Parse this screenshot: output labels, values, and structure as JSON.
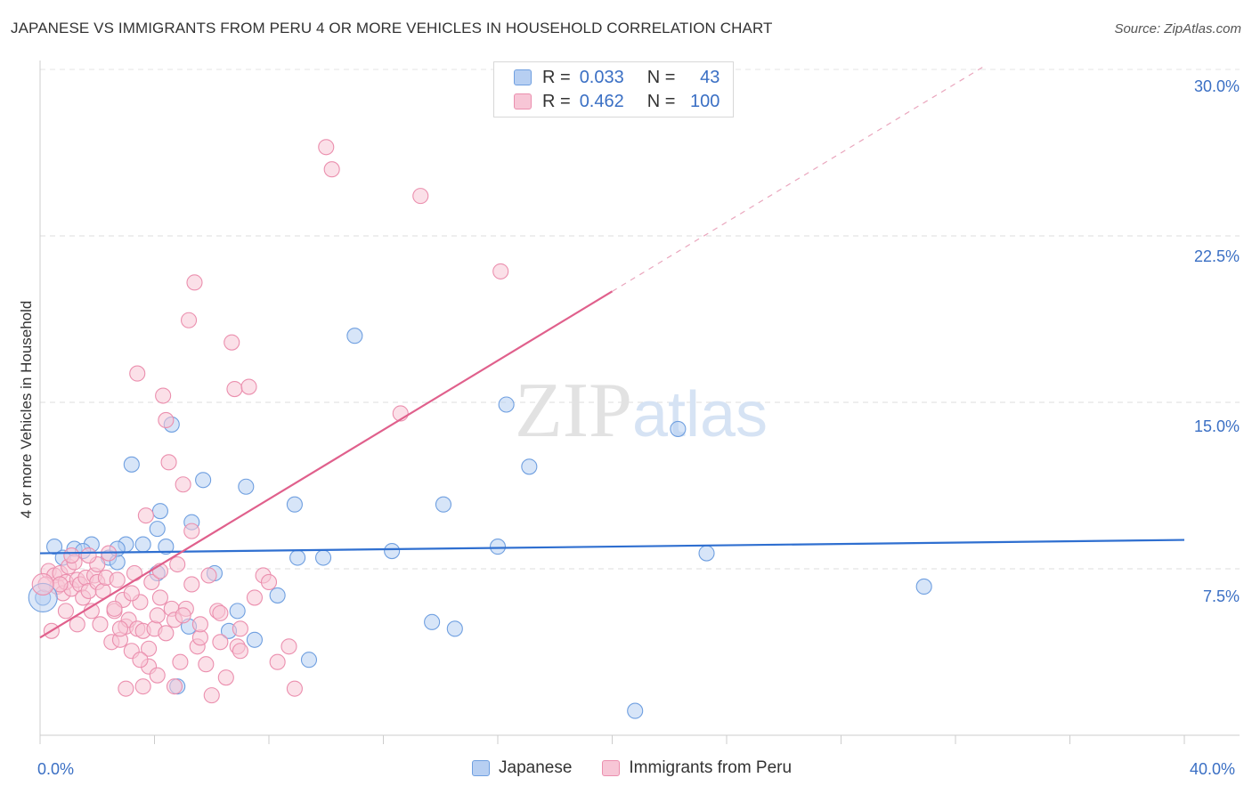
{
  "chart_data": {
    "type": "scatter",
    "title": "JAPANESE VS IMMIGRANTS FROM PERU 4 OR MORE VEHICLES IN HOUSEHOLD CORRELATION CHART",
    "source": "Source: ZipAtlas.com",
    "xlabel": "",
    "ylabel": "4 or more Vehicles in Household",
    "xlim": [
      0,
      40
    ],
    "ylim": [
      0,
      30
    ],
    "x_tick_labels": [
      "0.0%",
      "40.0%"
    ],
    "y_ticks": [
      7.5,
      15.0,
      22.5,
      30.0
    ],
    "y_tick_labels": [
      "7.5%",
      "15.0%",
      "22.5%",
      "30.0%"
    ],
    "watermark": "ZIPatlas",
    "legend": {
      "r_label": "R =",
      "n_label": "N =",
      "entries": [
        {
          "name": "Japanese",
          "r": "0.033",
          "n": "43"
        },
        {
          "name": "Immigrants from Peru",
          "r": "0.462",
          "n": "100"
        }
      ]
    },
    "series": [
      {
        "name": "Japanese",
        "color": "#6f9fe0",
        "fill": "#b7cff2",
        "line_color": "#2f6fd0",
        "trend": {
          "x0": 0,
          "y0": 8.2,
          "x1": 40,
          "y1": 8.8
        },
        "points": [
          [
            0.5,
            8.5
          ],
          [
            1.8,
            8.6
          ],
          [
            2.4,
            8.0
          ],
          [
            2.7,
            7.8
          ],
          [
            3.0,
            8.6
          ],
          [
            3.6,
            8.6
          ],
          [
            2.7,
            8.4
          ],
          [
            4.1,
            9.3
          ],
          [
            3.2,
            12.2
          ],
          [
            4.1,
            7.3
          ],
          [
            4.2,
            10.1
          ],
          [
            4.4,
            8.5
          ],
          [
            4.6,
            14.0
          ],
          [
            5.3,
            9.6
          ],
          [
            5.7,
            11.5
          ],
          [
            6.1,
            7.3
          ],
          [
            5.2,
            4.9
          ],
          [
            6.9,
            5.6
          ],
          [
            6.6,
            4.7
          ],
          [
            7.2,
            11.2
          ],
          [
            7.5,
            4.3
          ],
          [
            8.3,
            6.3
          ],
          [
            8.9,
            10.4
          ],
          [
            9.0,
            8.0
          ],
          [
            9.4,
            3.4
          ],
          [
            9.9,
            8.0
          ],
          [
            11.0,
            18.0
          ],
          [
            12.3,
            8.3
          ],
          [
            13.7,
            5.1
          ],
          [
            14.1,
            10.4
          ],
          [
            14.5,
            4.8
          ],
          [
            16.0,
            8.5
          ],
          [
            16.3,
            14.9
          ],
          [
            17.1,
            12.1
          ],
          [
            20.8,
            1.1
          ],
          [
            22.3,
            13.8
          ],
          [
            23.3,
            8.2
          ],
          [
            30.9,
            6.7
          ],
          [
            1.2,
            8.4
          ],
          [
            0.8,
            8.0
          ],
          [
            4.8,
            2.2
          ],
          [
            0.1,
            6.2
          ],
          [
            1.5,
            8.3
          ]
        ]
      },
      {
        "name": "Immigrants from Peru",
        "color": "#eb8fae",
        "fill": "#f7c6d6",
        "line_color": "#e0608c",
        "trend": {
          "x0": 0,
          "y0": 4.4,
          "x1": 40,
          "y1": 35.6
        },
        "trend_solid_until": 20.0,
        "points": [
          [
            0.3,
            7.4
          ],
          [
            0.5,
            7.2
          ],
          [
            0.6,
            6.7
          ],
          [
            0.7,
            7.3
          ],
          [
            0.8,
            6.4
          ],
          [
            0.9,
            6.9
          ],
          [
            1.0,
            7.6
          ],
          [
            1.1,
            6.6
          ],
          [
            1.2,
            7.8
          ],
          [
            1.3,
            7.0
          ],
          [
            1.4,
            6.8
          ],
          [
            1.5,
            6.2
          ],
          [
            1.6,
            7.1
          ],
          [
            1.7,
            6.5
          ],
          [
            1.8,
            5.6
          ],
          [
            1.9,
            7.2
          ],
          [
            2.0,
            6.9
          ],
          [
            2.1,
            5.0
          ],
          [
            2.2,
            6.5
          ],
          [
            2.3,
            7.1
          ],
          [
            2.4,
            8.2
          ],
          [
            2.5,
            4.2
          ],
          [
            2.6,
            5.6
          ],
          [
            2.7,
            7.0
          ],
          [
            2.8,
            4.3
          ],
          [
            2.9,
            6.1
          ],
          [
            3.0,
            4.9
          ],
          [
            3.1,
            5.2
          ],
          [
            3.2,
            3.8
          ],
          [
            3.3,
            7.3
          ],
          [
            3.4,
            4.8
          ],
          [
            3.5,
            6.0
          ],
          [
            3.6,
            4.7
          ],
          [
            3.7,
            9.9
          ],
          [
            3.8,
            3.1
          ],
          [
            3.9,
            6.9
          ],
          [
            4.0,
            4.8
          ],
          [
            4.1,
            2.7
          ],
          [
            4.2,
            6.2
          ],
          [
            4.3,
            15.3
          ],
          [
            4.4,
            14.2
          ],
          [
            4.5,
            12.3
          ],
          [
            4.6,
            5.7
          ],
          [
            4.7,
            5.2
          ],
          [
            4.8,
            7.7
          ],
          [
            4.9,
            3.3
          ],
          [
            5.0,
            11.3
          ],
          [
            5.1,
            5.7
          ],
          [
            5.2,
            18.7
          ],
          [
            5.3,
            9.2
          ],
          [
            5.4,
            20.4
          ],
          [
            5.5,
            4.0
          ],
          [
            5.6,
            4.4
          ],
          [
            5.8,
            3.2
          ],
          [
            5.9,
            7.2
          ],
          [
            6.0,
            1.8
          ],
          [
            6.2,
            5.6
          ],
          [
            6.3,
            5.5
          ],
          [
            6.5,
            2.6
          ],
          [
            6.7,
            17.7
          ],
          [
            6.8,
            15.6
          ],
          [
            7.0,
            4.8
          ],
          [
            7.3,
            15.7
          ],
          [
            7.5,
            6.2
          ],
          [
            7.8,
            7.2
          ],
          [
            8.0,
            6.9
          ],
          [
            8.3,
            3.3
          ],
          [
            8.7,
            4.0
          ],
          [
            8.9,
            2.1
          ],
          [
            10.0,
            26.5
          ],
          [
            10.2,
            25.5
          ],
          [
            12.6,
            14.5
          ],
          [
            13.3,
            24.3
          ],
          [
            16.1,
            20.9
          ],
          [
            0.4,
            4.7
          ],
          [
            0.9,
            5.6
          ],
          [
            1.3,
            5.0
          ],
          [
            3.4,
            16.3
          ],
          [
            3.0,
            2.1
          ],
          [
            3.6,
            2.2
          ],
          [
            4.1,
            5.4
          ],
          [
            4.7,
            2.2
          ],
          [
            3.8,
            3.9
          ],
          [
            2.8,
            4.8
          ],
          [
            5.0,
            5.4
          ],
          [
            1.1,
            8.1
          ],
          [
            0.7,
            6.8
          ],
          [
            2.0,
            7.7
          ],
          [
            3.2,
            6.4
          ],
          [
            4.4,
            4.6
          ],
          [
            5.6,
            5.0
          ],
          [
            6.3,
            4.2
          ],
          [
            6.9,
            4.0
          ],
          [
            7.0,
            3.8
          ],
          [
            2.6,
            5.7
          ],
          [
            1.7,
            8.1
          ],
          [
            3.5,
            3.4
          ],
          [
            0.2,
            6.8
          ],
          [
            4.2,
            7.4
          ],
          [
            5.3,
            6.8
          ]
        ]
      }
    ]
  }
}
